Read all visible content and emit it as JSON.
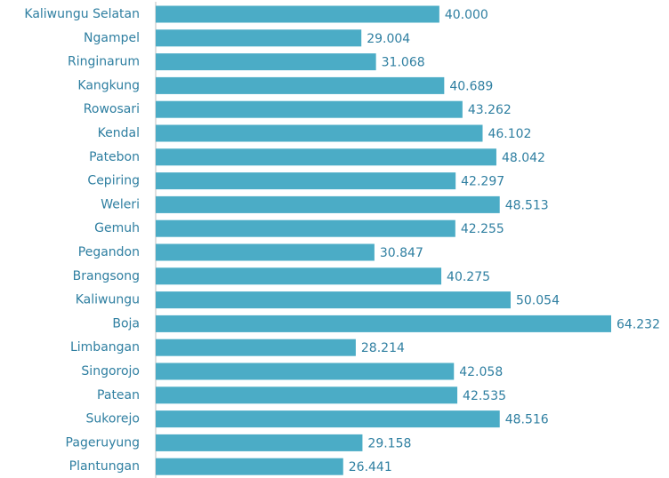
{
  "chart_data": {
    "type": "bar",
    "orientation": "horizontal",
    "color": "#4bacc6",
    "categories": [
      "Kaliwungu Selatan",
      "Ngampel",
      "Ringinarum",
      "Kangkung",
      "Rowosari",
      "Kendal",
      "Patebon",
      "Cepiring",
      "Weleri",
      "Gemuh",
      "Pegandon",
      "Brangsong",
      "Kaliwungu",
      "Boja",
      "Limbangan",
      "Singorojo",
      "Patean",
      "Sukorejo",
      "Pageruyung",
      "Plantungan"
    ],
    "values": [
      40000,
      29004,
      31068,
      40689,
      43262,
      46102,
      48042,
      42297,
      48513,
      42255,
      30847,
      40275,
      50054,
      64232,
      28214,
      42058,
      42535,
      48516,
      29158,
      26441
    ],
    "value_labels": [
      "40.000",
      "29.004",
      "31.068",
      "40.689",
      "43.262",
      "46.102",
      "48.042",
      "42.297",
      "48.513",
      "42.255",
      "30.847",
      "40.275",
      "50.054",
      "64.232",
      "28.214",
      "42.058",
      "42.535",
      "48.516",
      "29.158",
      "26.441"
    ]
  }
}
